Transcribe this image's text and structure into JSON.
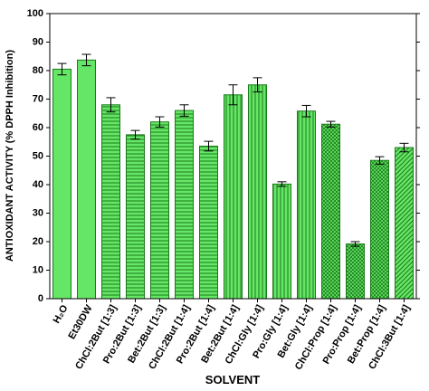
{
  "chart_data": {
    "type": "bar",
    "x_label": "SOLVENT",
    "y_label": "ANTIOXIDANT ACTIVITY (% DPPH Inhibition)",
    "categories": [
      "H₂O",
      "Et30DW",
      "ChCl:2But [1:3]",
      "Pro:2But [1:3]",
      "Bet:2But [1:3]",
      "ChCl:2But [1:4]",
      "Pro:2But [1:4]",
      "Bet:2But [1:4]",
      "ChCl:Gly [1:4]",
      "Pro:Gly [1:4]",
      "Bet:Gly [1:4]",
      "ChCl:Prop [1:4]",
      "Pro:Prop [1:4]",
      "Bet:Prop [1:4]",
      "ChCl:3But [1:4]"
    ],
    "values": [
      80.5,
      83.7,
      68,
      57.5,
      62,
      66,
      53.5,
      71.5,
      75,
      40.2,
      65.8,
      61.2,
      19.2,
      48.5,
      53
    ],
    "errors": [
      2,
      2,
      2.5,
      1.5,
      1.8,
      2,
      1.7,
      3.5,
      2.5,
      0.8,
      2,
      1,
      0.8,
      1.3,
      1.5
    ],
    "patterns": [
      "solid",
      "solid",
      "horizontal",
      "horizontal",
      "horizontal",
      "horizontal",
      "horizontal",
      "vertical",
      "vertical",
      "vertical",
      "vertical",
      "crosshatch",
      "crosshatch",
      "crosshatch",
      "diagonal"
    ],
    "color": "#66e666",
    "edge_color": "#1a7a1a",
    "ylim": [
      0,
      100
    ],
    "yticks": [
      0,
      10,
      20,
      30,
      40,
      50,
      60,
      70,
      80,
      90,
      100
    ]
  }
}
